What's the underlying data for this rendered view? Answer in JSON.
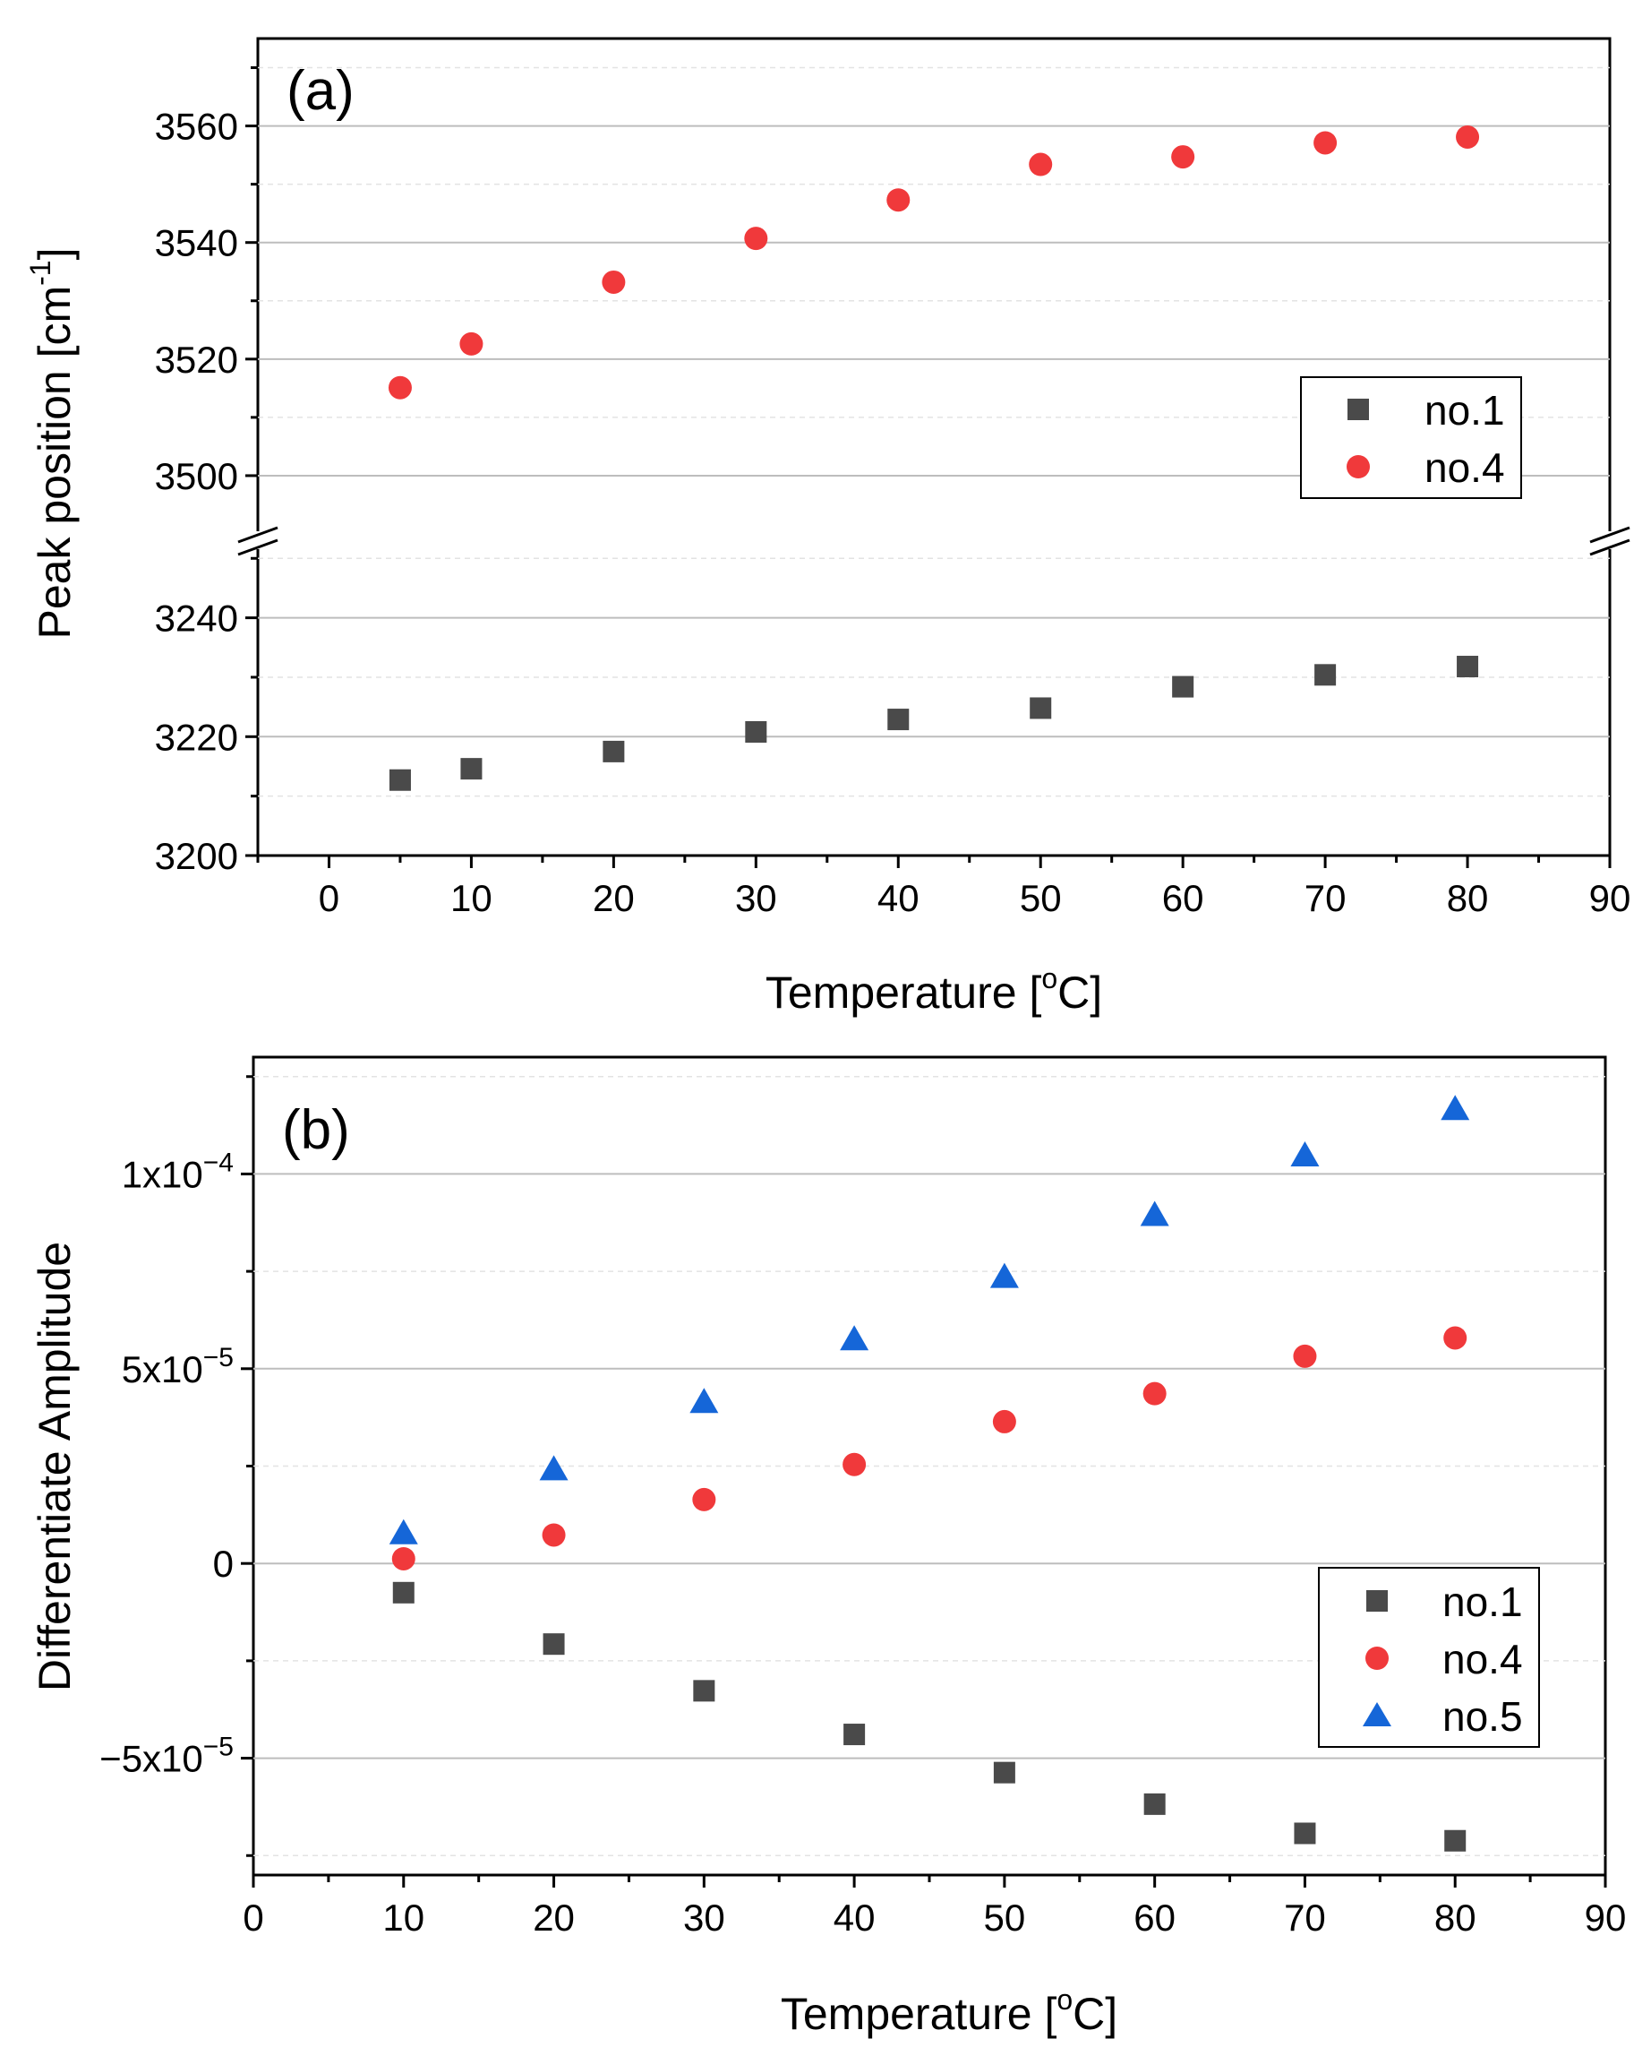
{
  "chart_data": [
    {
      "type": "scatter",
      "panel_label": "(a)",
      "xlabel": "Temperature [",
      "xlabel_sup": "o",
      "xlabel_end": "C]",
      "ylabel": "Peak position [cm",
      "ylabel_sup": "-1",
      "ylabel_end": "]",
      "xlim": [
        -5,
        90
      ],
      "x_ticks": [
        "0",
        "10",
        "20",
        "30",
        "40",
        "50",
        "60",
        "70",
        "80",
        "90"
      ],
      "y_axis_break": true,
      "upper_ylim": [
        3490,
        3575
      ],
      "upper_y_ticks": [
        "3500",
        "3520",
        "3540",
        "3560"
      ],
      "lower_ylim": [
        3200,
        3252
      ],
      "lower_y_ticks": [
        "3200",
        "3220",
        "3240"
      ],
      "grid": true,
      "legend_position": "upper-right",
      "legend": [
        "no.1",
        "no.4"
      ],
      "series": [
        {
          "name": "no.1",
          "marker": "square",
          "color": "#4a4a4a",
          "segment": "lower",
          "x": [
            5,
            10,
            20,
            30,
            40,
            50,
            60,
            70,
            80
          ],
          "y": [
            3212.7,
            3214.6,
            3217.5,
            3220.8,
            3222.9,
            3224.8,
            3228.4,
            3230.4,
            3231.8
          ]
        },
        {
          "name": "no.4",
          "marker": "circle",
          "color": "#f0393b",
          "segment": "upper",
          "x": [
            5,
            10,
            20,
            30,
            40,
            50,
            60,
            70,
            80
          ],
          "y": [
            3515.1,
            3522.6,
            3533.2,
            3540.7,
            3547.3,
            3553.4,
            3554.7,
            3557.1,
            3558.1
          ]
        }
      ]
    },
    {
      "type": "scatter",
      "panel_label": "(b)",
      "xlabel": "Temperature [",
      "xlabel_sup": "o",
      "xlabel_end": "C]",
      "ylabel": "Differentiate Amplitude",
      "xlim": [
        0,
        90
      ],
      "x_ticks": [
        "0",
        "10",
        "20",
        "30",
        "40",
        "50",
        "60",
        "70",
        "80",
        "90"
      ],
      "ylim": [
        -8e-05,
        0.00013
      ],
      "y_ticks": [
        {
          "value": 0.0001,
          "base": "1x10",
          "exp": "−4"
        },
        {
          "value": 5e-05,
          "base": "5x10",
          "exp": "−5"
        },
        {
          "value": 0,
          "base": "0",
          "exp": ""
        },
        {
          "value": -5e-05,
          "base": "−5x10",
          "exp": "−5"
        }
      ],
      "grid": true,
      "legend_position": "lower-right",
      "legend": [
        "no.1",
        "no.4",
        "no.5"
      ],
      "series": [
        {
          "name": "no.1",
          "marker": "square",
          "color": "#4a4a4a",
          "x": [
            10,
            20,
            30,
            40,
            50,
            60,
            70,
            80
          ],
          "y": [
            -7.5e-06,
            -2.07e-05,
            -3.27e-05,
            -4.39e-05,
            -5.37e-05,
            -6.18e-05,
            -6.93e-05,
            -7.12e-05
          ]
        },
        {
          "name": "no.4",
          "marker": "circle",
          "color": "#f0393b",
          "x": [
            10,
            20,
            30,
            40,
            50,
            60,
            70,
            80
          ],
          "y": [
            1.2e-06,
            7.3e-06,
            1.64e-05,
            2.54e-05,
            3.64e-05,
            4.36e-05,
            5.32e-05,
            5.79e-05
          ]
        },
        {
          "name": "no.5",
          "marker": "triangle",
          "color": "#1566d8",
          "x": [
            10,
            20,
            30,
            40,
            50,
            60,
            70,
            80
          ],
          "y": [
            7.7e-06,
            2.41e-05,
            4.14e-05,
            5.75e-05,
            7.35e-05,
            8.94e-05,
            0.0001047,
            0.0001166
          ]
        }
      ]
    }
  ]
}
